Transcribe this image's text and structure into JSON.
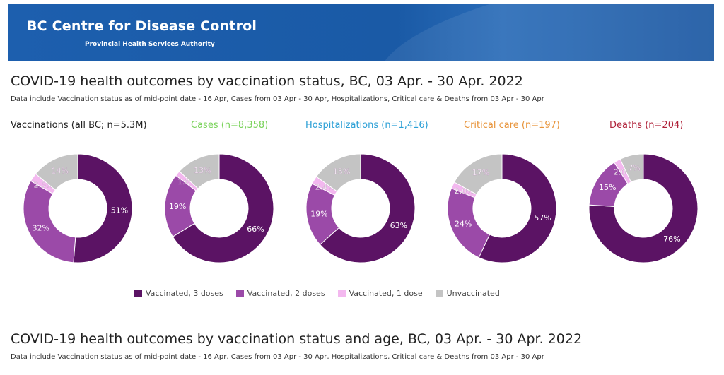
{
  "header": {
    "org_name": "BC Centre for Disease Control",
    "org_sub": "Provincial Health Services Authority"
  },
  "section1": {
    "title": "COVID-19 health outcomes by vaccination status, BC,  03 Apr. - 30 Apr. 2022",
    "subtitle": "Data include Vaccination status as of mid-point date - 16 Apr, Cases  from  03 Apr - 30 Apr, Hospitalizations, Critical care & Deaths from 03 Apr - 30 Apr"
  },
  "section2": {
    "title": "COVID-19 health outcomes by vaccination status and age, BC,  03 Apr. - 30 Apr. 2022",
    "subtitle": "Data include Vaccination status as of mid-point date - 16 Apr, Cases  from  03 Apr - 30 Apr, Hospitalizations, Critical care & Deaths from 03 Apr - 30 Apr"
  },
  "legend": [
    {
      "label": "Vaccinated, 3 doses",
      "color": "#5b1364"
    },
    {
      "label": "Vaccinated, 2 doses",
      "color": "#9b4aa8"
    },
    {
      "label": "Vaccinated, 1 dose",
      "color": "#f3b8ef"
    },
    {
      "label": "Unvaccinated",
      "color": "#c4c4c4"
    }
  ],
  "chart_data": [
    {
      "type": "pie",
      "title": "Vaccinations (all BC; n=5.3M)",
      "title_color": "#222222",
      "categories": [
        "Vaccinated, 3 doses",
        "Vaccinated, 2 doses",
        "Vaccinated, 1 dose",
        "Unvaccinated"
      ],
      "values": [
        51,
        32,
        2.5,
        14
      ],
      "labels": [
        "51%",
        "32%",
        "2.5%",
        "14%"
      ]
    },
    {
      "type": "pie",
      "title": "Cases (n=8,358)",
      "title_color": "#7bd35c",
      "categories": [
        "Vaccinated, 3 doses",
        "Vaccinated, 2 doses",
        "Vaccinated, 1 dose",
        "Unvaccinated"
      ],
      "values": [
        66,
        19,
        1.6,
        13
      ],
      "labels": [
        "66%",
        "19%",
        "1.6%",
        "13%"
      ]
    },
    {
      "type": "pie",
      "title": "Hospitalizations (n=1,416)",
      "title_color": "#2a9fd6",
      "categories": [
        "Vaccinated, 3 doses",
        "Vaccinated, 2 doses",
        "Vaccinated, 1 dose",
        "Unvaccinated"
      ],
      "values": [
        63,
        19,
        2.4,
        15
      ],
      "labels": [
        "63%",
        "19%",
        "2.4%",
        "15%"
      ]
    },
    {
      "type": "pie",
      "title": "Critical care (n=197)",
      "title_color": "#e8943a",
      "categories": [
        "Vaccinated, 3 doses",
        "Vaccinated, 2 doses",
        "Vaccinated, 1 dose",
        "Unvaccinated"
      ],
      "values": [
        57,
        24,
        2.0,
        17
      ],
      "labels": [
        "57%",
        "24%",
        "2.0%",
        "17%"
      ]
    },
    {
      "type": "pie",
      "title": "Deaths (n=204)",
      "title_color": "#b0233a",
      "categories": [
        "Vaccinated, 3 doses",
        "Vaccinated, 2 doses",
        "Vaccinated, 1 dose",
        "Unvaccinated"
      ],
      "values": [
        76,
        15,
        2.0,
        7
      ],
      "labels": [
        "76%",
        "15%",
        "2.0%",
        "7%"
      ]
    }
  ]
}
